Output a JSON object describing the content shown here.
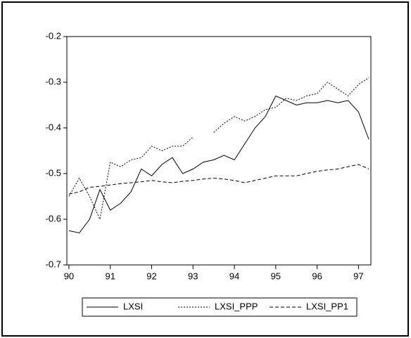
{
  "chart_data": {
    "type": "line",
    "x": [
      90.0,
      90.25,
      90.5,
      90.75,
      91.0,
      91.25,
      91.5,
      91.75,
      92.0,
      92.25,
      92.5,
      92.75,
      93.0,
      93.25,
      93.5,
      93.75,
      94.0,
      94.25,
      94.5,
      94.75,
      95.0,
      95.25,
      95.5,
      95.75,
      96.0,
      96.25,
      96.5,
      96.75,
      97.0,
      97.25
    ],
    "series": [
      {
        "name": "LXSI",
        "color": "#000000",
        "dash": "solid",
        "values": [
          -0.625,
          -0.63,
          -0.6,
          -0.535,
          -0.58,
          -0.565,
          -0.54,
          -0.49,
          -0.505,
          -0.48,
          -0.465,
          -0.5,
          -0.49,
          -0.475,
          -0.47,
          -0.46,
          -0.47,
          -0.435,
          -0.4,
          -0.375,
          -0.33,
          -0.34,
          -0.35,
          -0.345,
          -0.345,
          -0.34,
          -0.345,
          -0.34,
          -0.365,
          -0.425
        ]
      },
      {
        "name": "LXSI_PPP",
        "color": "#000000",
        "dash": "dotted",
        "values": [
          -0.55,
          -0.51,
          -0.55,
          -0.6,
          -0.475,
          -0.485,
          -0.47,
          -0.465,
          -0.44,
          -0.45,
          -0.44,
          -0.44,
          -0.42,
          null,
          -0.41,
          -0.39,
          -0.375,
          -0.385,
          -0.375,
          -0.36,
          -0.355,
          -0.335,
          -0.34,
          -0.33,
          -0.325,
          -0.3,
          -0.315,
          -0.33,
          -0.305,
          -0.29
        ]
      },
      {
        "name": "LXSI_PP1",
        "color": "#000000",
        "dash": "dashed",
        "values": [
          -0.545,
          -0.54,
          -0.53,
          -0.528,
          -0.525,
          -0.522,
          -0.52,
          -0.518,
          -0.515,
          -0.518,
          -0.52,
          -0.517,
          -0.515,
          -0.512,
          -0.51,
          -0.512,
          -0.515,
          -0.52,
          -0.515,
          -0.51,
          -0.505,
          -0.505,
          -0.505,
          -0.5,
          -0.495,
          -0.492,
          -0.49,
          -0.485,
          -0.48,
          -0.49
        ]
      }
    ],
    "xlim": [
      89.95,
      97.3
    ],
    "xticks": [
      90,
      91,
      92,
      93,
      94,
      95,
      96,
      97
    ],
    "ylim": [
      -0.7,
      -0.2
    ],
    "yticks": [
      -0.2,
      -0.3,
      -0.4,
      -0.5,
      -0.6,
      -0.7
    ],
    "grid": false,
    "legend": "bottom"
  }
}
